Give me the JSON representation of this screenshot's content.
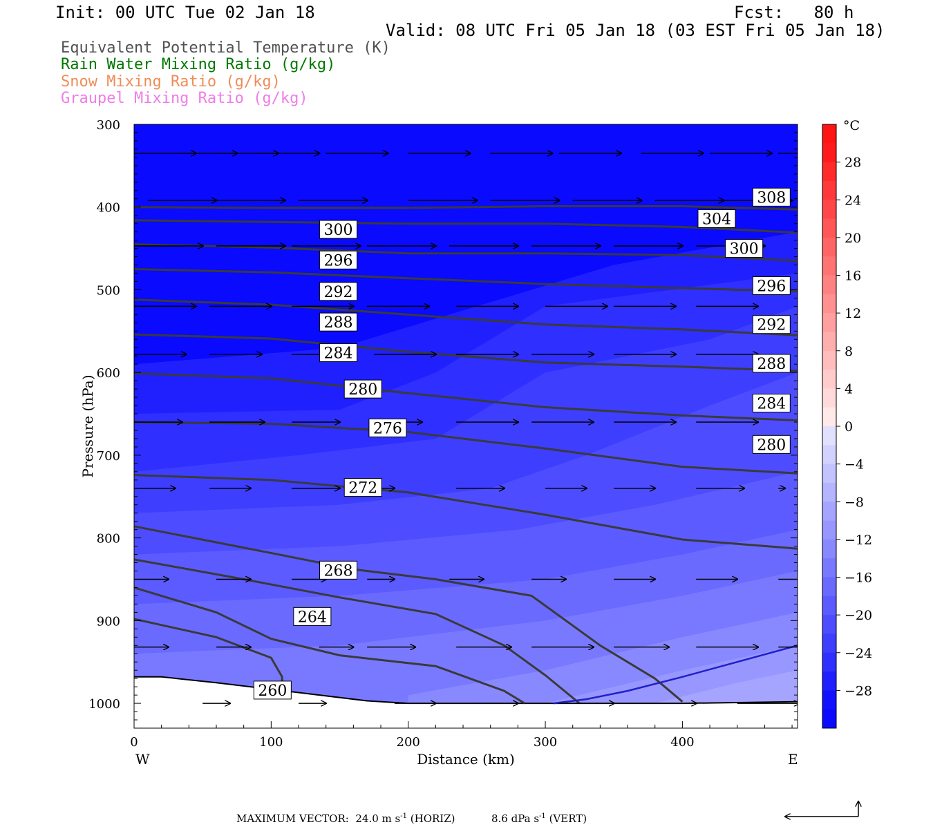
{
  "header": {
    "init": "Init: 00 UTC Tue 02 Jan 18",
    "fcst_label": "Fcst:",
    "fcst_value": "80 h",
    "valid": "Valid: 08 UTC Fri 05 Jan 18 (03 EST Fri 05 Jan 18)",
    "fields": [
      {
        "label": "Equivalent Potential Temperature (K)",
        "color": "#505050"
      },
      {
        "label": "Rain Water Mixing Ratio (g/kg)",
        "color": "#007800"
      },
      {
        "label": "Snow Mixing Ratio (g/kg)",
        "color": "#f08c5a"
      },
      {
        "label": "Graupel Mixing Ratio (g/kg)",
        "color": "#f07ce6"
      }
    ]
  },
  "footer": {
    "prefix": "MAXIMUM VECTOR:",
    "horiz_value": "24.0 m s",
    "horiz_exp": "-1",
    "horiz_tag": "(HORIZ)",
    "vert_value": "8.6 dPa s",
    "vert_exp": "-1",
    "vert_tag": "(VERT)"
  },
  "chart_data": {
    "type": "cross-section",
    "xlabel": "Distance (km)",
    "ylabel": "Pressure (hPa)",
    "xlim": [
      0,
      484
    ],
    "ylim": [
      1030,
      300
    ],
    "x_ticks": [
      0,
      100,
      200,
      300,
      400
    ],
    "y_ticks": [
      300,
      400,
      500,
      600,
      700,
      800,
      900,
      1000
    ],
    "x_end_labels": {
      "left": "W",
      "right": "E"
    },
    "colorbar": {
      "unit": "°C",
      "labels": [
        "28",
        "24",
        "20",
        "16",
        "12",
        "8",
        "4",
        "0",
        "−4",
        "−8",
        "−12",
        "−16",
        "−20",
        "−24",
        "−28"
      ],
      "label_values": [
        28,
        24,
        20,
        16,
        12,
        8,
        4,
        0,
        -4,
        -8,
        -12,
        -16,
        -20,
        -24,
        -28
      ],
      "range": [
        -32,
        32
      ],
      "step": 2
    },
    "theta_e_contours": [
      {
        "label": "308",
        "points": [
          [
            0,
            400
          ],
          [
            100,
            401
          ],
          [
            200,
            401
          ],
          [
            300,
            399
          ],
          [
            400,
            399
          ],
          [
            484,
            403
          ]
        ],
        "label_at": [
          465,
          388
        ]
      },
      {
        "label": "304",
        "points": [
          [
            0,
            416
          ],
          [
            100,
            418
          ],
          [
            200,
            420
          ],
          [
            300,
            420
          ],
          [
            400,
            424
          ],
          [
            484,
            431
          ]
        ],
        "label_at": [
          425,
          414
        ]
      },
      {
        "label": "300",
        "points": [
          [
            0,
            445
          ],
          [
            100,
            449
          ],
          [
            200,
            456
          ],
          [
            300,
            456
          ],
          [
            400,
            458
          ],
          [
            484,
            465
          ]
        ],
        "label_at": [
          149,
          427
        ],
        "label_at2": [
          445,
          450
        ]
      },
      {
        "label": "296",
        "points": [
          [
            0,
            475
          ],
          [
            100,
            479
          ],
          [
            200,
            486
          ],
          [
            300,
            493
          ],
          [
            400,
            498
          ],
          [
            484,
            502
          ]
        ],
        "label_at": [
          149,
          464
        ],
        "label_at2": [
          465,
          495
        ]
      },
      {
        "label": "292",
        "points": [
          [
            0,
            512
          ],
          [
            100,
            518
          ],
          [
            200,
            530
          ],
          [
            300,
            542
          ],
          [
            400,
            548
          ],
          [
            484,
            555
          ]
        ],
        "label_at": [
          149,
          502
        ],
        "label_at2": [
          465,
          542
        ]
      },
      {
        "label": "288",
        "points": [
          [
            0,
            554
          ],
          [
            100,
            559
          ],
          [
            200,
            575
          ],
          [
            300,
            588
          ],
          [
            400,
            593
          ],
          [
            484,
            598
          ]
        ],
        "label_at": [
          149,
          539
        ],
        "label_at2": [
          465,
          589
        ]
      },
      {
        "label": "284",
        "points": [
          [
            0,
            601
          ],
          [
            100,
            607
          ],
          [
            200,
            625
          ],
          [
            300,
            642
          ],
          [
            400,
            652
          ],
          [
            484,
            658
          ]
        ],
        "label_at": [
          149,
          576
        ],
        "label_at2": [
          465,
          637
        ]
      },
      {
        "label": "280",
        "points": [
          [
            0,
            660
          ],
          [
            100,
            662
          ],
          [
            200,
            672
          ],
          [
            300,
            692
          ],
          [
            400,
            714
          ],
          [
            484,
            722
          ]
        ],
        "label_at": [
          167,
          620
        ],
        "label_at2": [
          465,
          687
        ]
      },
      {
        "label": "276",
        "points": [
          [
            0,
            724
          ],
          [
            100,
            730
          ],
          [
            200,
            745
          ],
          [
            300,
            772
          ],
          [
            400,
            802
          ],
          [
            484,
            813
          ]
        ],
        "label_at": [
          185,
          667
        ]
      },
      {
        "label": "272",
        "points": [
          [
            0,
            786
          ],
          [
            90,
            815
          ],
          [
            160,
            838
          ],
          [
            220,
            850
          ],
          [
            290,
            870
          ],
          [
            340,
            930
          ],
          [
            380,
            970
          ],
          [
            400,
            998
          ]
        ],
        "label_at": [
          167,
          739
        ]
      },
      {
        "label": "268",
        "points": [
          [
            0,
            826
          ],
          [
            80,
            850
          ],
          [
            150,
            872
          ],
          [
            220,
            892
          ],
          [
            270,
            930
          ],
          [
            300,
            966
          ],
          [
            325,
            1000
          ]
        ],
        "label_at": [
          149,
          839
        ]
      },
      {
        "label": "264",
        "points": [
          [
            0,
            860
          ],
          [
            60,
            890
          ],
          [
            100,
            922
          ],
          [
            150,
            942
          ],
          [
            220,
            955
          ],
          [
            270,
            985
          ],
          [
            285,
            1000
          ]
        ],
        "label_at": [
          130,
          895
        ]
      },
      {
        "label": "260",
        "points": [
          [
            0,
            898
          ],
          [
            60,
            920
          ],
          [
            100,
            945
          ],
          [
            108,
            968
          ],
          [
            108,
            985
          ]
        ],
        "label_at": [
          101,
          984
        ]
      }
    ],
    "blue_line": {
      "color": "#2020c8",
      "points": [
        [
          306,
          1000
        ],
        [
          330,
          995
        ],
        [
          360,
          985
        ],
        [
          400,
          968
        ],
        [
          440,
          950
        ],
        [
          484,
          930
        ]
      ]
    },
    "terrain": {
      "points": [
        [
          0,
          968
        ],
        [
          20,
          968
        ],
        [
          60,
          975
        ],
        [
          120,
          987
        ],
        [
          170,
          997
        ],
        [
          200,
          1000
        ],
        [
          300,
          1000
        ],
        [
          400,
          1000
        ],
        [
          484,
          998
        ]
      ]
    },
    "wind_rows": [
      {
        "p": 335,
        "vecs": [
          [
            0,
            45
          ],
          [
            30,
            45
          ],
          [
            60,
            45
          ],
          [
            90,
            45
          ],
          [
            140,
            45
          ],
          [
            200,
            45
          ],
          [
            260,
            45
          ],
          [
            310,
            45
          ],
          [
            370,
            45
          ],
          [
            420,
            45
          ],
          [
            470,
            45
          ]
        ]
      },
      {
        "p": 392,
        "vecs": [
          [
            10,
            50
          ],
          [
            60,
            50
          ],
          [
            120,
            50
          ],
          [
            200,
            50
          ],
          [
            260,
            50
          ],
          [
            320,
            50
          ],
          [
            380,
            50
          ],
          [
            430,
            50
          ]
        ]
      },
      {
        "p": 447,
        "vecs": [
          [
            0,
            50
          ],
          [
            60,
            50
          ],
          [
            115,
            50
          ],
          [
            170,
            50
          ],
          [
            230,
            50
          ],
          [
            290,
            50
          ],
          [
            350,
            50
          ],
          [
            410,
            50
          ]
        ]
      },
      {
        "p": 520,
        "vecs": [
          [
            0,
            45
          ],
          [
            55,
            45
          ],
          [
            115,
            45
          ],
          [
            170,
            45
          ],
          [
            235,
            45
          ],
          [
            300,
            45
          ],
          [
            350,
            45
          ],
          [
            410,
            45
          ]
        ]
      },
      {
        "p": 578,
        "vecs": [
          [
            0,
            38
          ],
          [
            55,
            38
          ],
          [
            115,
            45
          ],
          [
            175,
            45
          ],
          [
            235,
            45
          ],
          [
            290,
            45
          ],
          [
            350,
            45
          ],
          [
            410,
            45
          ]
        ]
      },
      {
        "p": 660,
        "vecs": [
          [
            0,
            35
          ],
          [
            55,
            40
          ],
          [
            115,
            35
          ],
          [
            175,
            35
          ],
          [
            235,
            45
          ],
          [
            290,
            45
          ],
          [
            350,
            45
          ],
          [
            410,
            45
          ]
        ]
      },
      {
        "p": 740,
        "vecs": [
          [
            0,
            30
          ],
          [
            55,
            30
          ],
          [
            115,
            35
          ],
          [
            170,
            20
          ],
          [
            235,
            35
          ],
          [
            300,
            30
          ],
          [
            350,
            30
          ],
          [
            410,
            35
          ],
          [
            470,
            5
          ]
        ]
      },
      {
        "p": 850,
        "vecs": [
          [
            0,
            25
          ],
          [
            60,
            25
          ],
          [
            115,
            25
          ],
          [
            170,
            20
          ],
          [
            230,
            25
          ],
          [
            290,
            25
          ],
          [
            350,
            30
          ],
          [
            410,
            30
          ],
          [
            470,
            30
          ]
        ]
      },
      {
        "p": 932,
        "vecs": [
          [
            0,
            25
          ],
          [
            60,
            25
          ],
          [
            135,
            25
          ],
          [
            170,
            35
          ],
          [
            235,
            40
          ],
          [
            290,
            45
          ],
          [
            350,
            40
          ],
          [
            410,
            45
          ],
          [
            470,
            45
          ]
        ]
      },
      {
        "p": 1000,
        "vecs": [
          [
            50,
            20
          ],
          [
            120,
            20
          ],
          [
            190,
            30
          ],
          [
            250,
            30
          ],
          [
            310,
            40
          ],
          [
            370,
            40
          ],
          [
            440,
            45
          ]
        ]
      }
    ]
  }
}
